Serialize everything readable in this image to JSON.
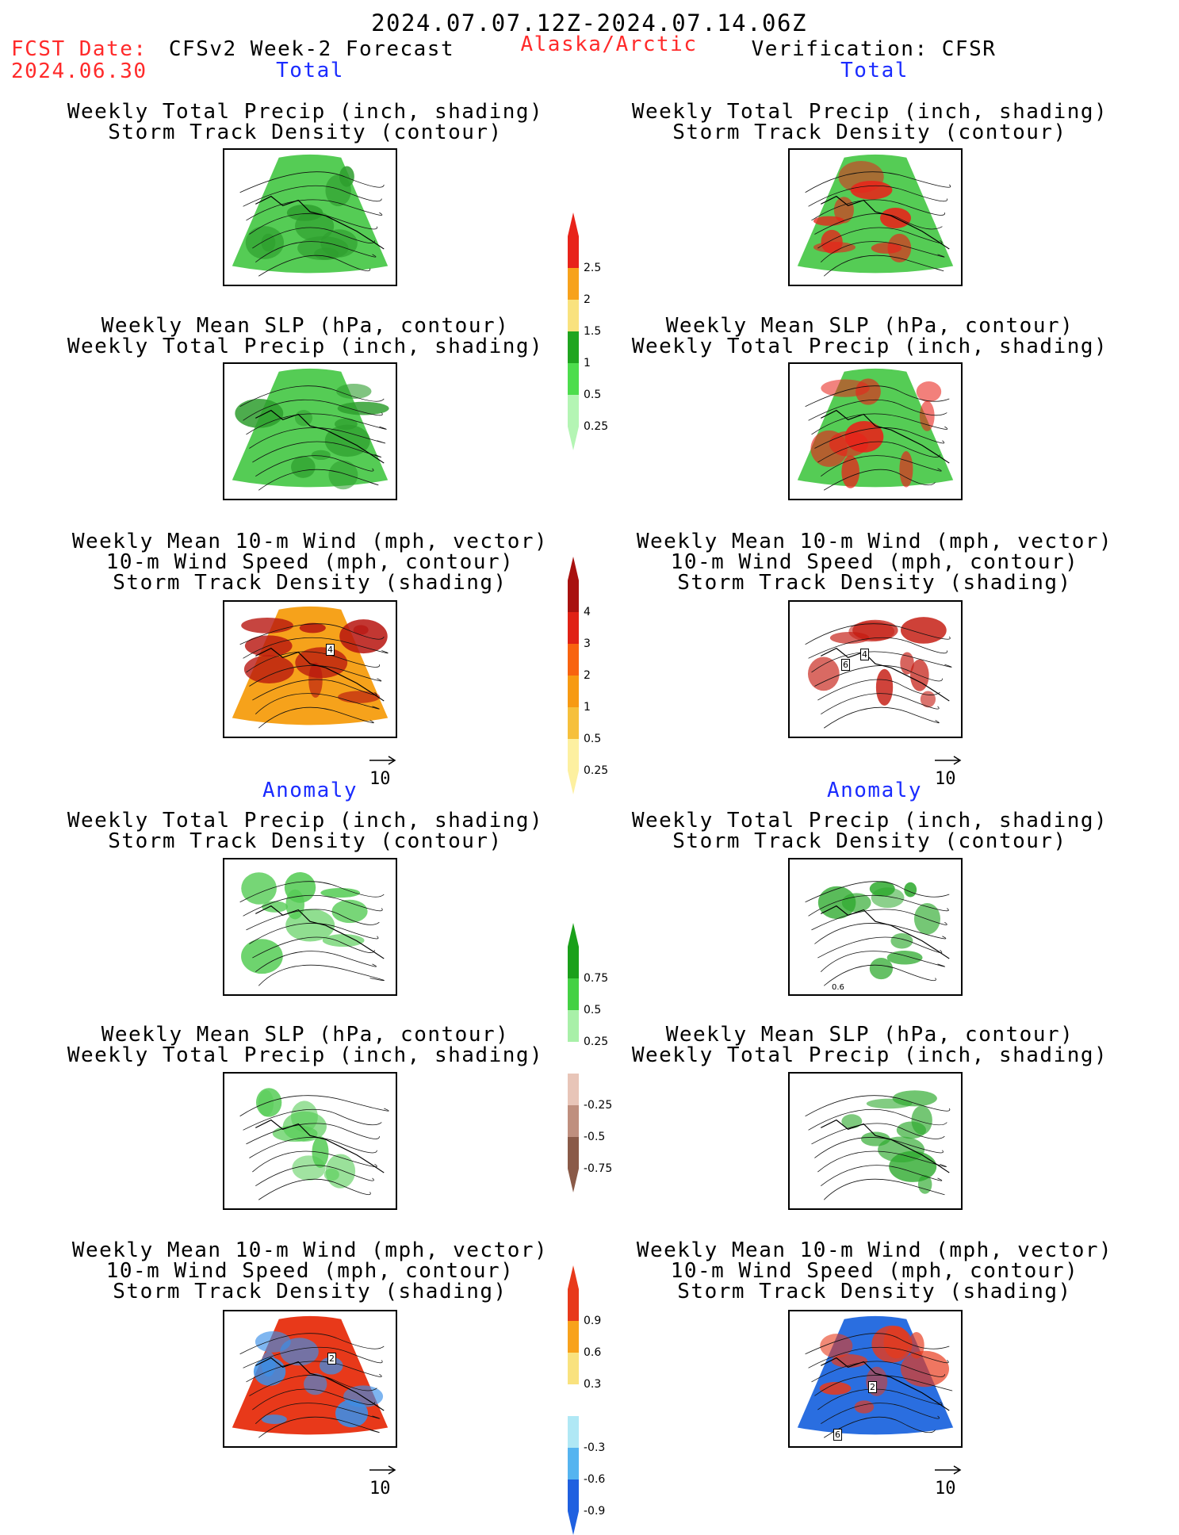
{
  "header": {
    "period": "2024.07.07.12Z-2024.07.14.06Z",
    "fcst_label": "FCST Date:",
    "fcst_date": "2024.06.30",
    "model": "CFSv2 Week-2 Forecast",
    "region": "Alaska/Arctic",
    "verification": "Verification: CFSR"
  },
  "sections": {
    "total": "Total",
    "anomaly": "Anomaly"
  },
  "panel_titles": {
    "precip_storm": [
      "Weekly Total Precip (inch, shading)",
      "Storm Track Density (contour)"
    ],
    "slp_precip": [
      "Weekly Mean SLP (hPa, contour)",
      "Weekly Total Precip (inch, shading)"
    ],
    "wind": [
      "Weekly Mean 10-m Wind (mph, vector)",
      "10-m Wind Speed (mph, contour)",
      "Storm Track Density (shading)"
    ]
  },
  "vector_ref": "10",
  "colorbars": {
    "precip_total": {
      "labels": [
        "2.5",
        "2",
        "1.5",
        "1",
        "0.5",
        "0.25"
      ],
      "colors": [
        "#e8231a",
        "#f7a21b",
        "#f9e27e",
        "#1fa51f",
        "#4ddd4d",
        "#b4f5b4"
      ]
    },
    "storm_total": {
      "labels": [
        "4",
        "3",
        "2",
        "1",
        "0.5",
        "0.25"
      ],
      "colors": [
        "#a8110f",
        "#e02115",
        "#f8630f",
        "#f79a12",
        "#f6c03b",
        "#fdf0a0"
      ]
    },
    "precip_anom": {
      "labels": [
        "0.75",
        "0.5",
        "0.25",
        "-0.25",
        "-0.5",
        "-0.75"
      ],
      "colors": [
        "#1aa01a",
        "#44d144",
        "#a8f0a8",
        "#ffffff",
        "#e8c5b8",
        "#bf8f7e",
        "#8a5a48"
      ]
    },
    "storm_anom": {
      "labels": [
        "0.9",
        "0.6",
        "0.3",
        "-0.3",
        "-0.6",
        "-0.9"
      ],
      "colors": [
        "#e8391a",
        "#f8a21b",
        "#f9e27e",
        "#ffffff",
        "#b0e8f5",
        "#55b4f0",
        "#1f60e0"
      ]
    }
  },
  "maps": [
    {
      "id": "fc-total-precip",
      "bg": "#55cc55",
      "accent": "#2e9e2e"
    },
    {
      "id": "ob-total-precip",
      "bg": "#55cc55",
      "accent": "#e8231a"
    },
    {
      "id": "fc-total-slp",
      "bg": "#55cc55",
      "accent": "#2e9e2e"
    },
    {
      "id": "ob-total-slp",
      "bg": "#55cc55",
      "accent": "#e8231a"
    },
    {
      "id": "fc-total-wind",
      "bg": "#f6a21b",
      "accent": "#b8150f"
    },
    {
      "id": "ob-total-wind",
      "bg": "#ffffff",
      "accent": "#c41a10"
    },
    {
      "id": "fc-anom-precip",
      "bg": "#ffffff",
      "accent": "#55cc55"
    },
    {
      "id": "ob-anom-precip",
      "bg": "#ffffff",
      "accent": "#2eaa2e"
    },
    {
      "id": "fc-anom-slp",
      "bg": "#ffffff",
      "accent": "#55cc55"
    },
    {
      "id": "ob-anom-slp",
      "bg": "#ffffff",
      "accent": "#2eaa2e"
    },
    {
      "id": "fc-anom-wind",
      "bg": "#e8391a",
      "accent": "#3a8fe8"
    },
    {
      "id": "ob-anom-wind",
      "bg": "#2a6ee0",
      "accent": "#e8391a"
    }
  ],
  "contour_labels": {
    "fc_total_wind": "4",
    "ob_total_wind": [
      "6",
      "4"
    ],
    "ob_anom_precip": "0.6",
    "fc_anom_wind": "2",
    "ob_anom_wind": [
      "2",
      "6"
    ]
  }
}
